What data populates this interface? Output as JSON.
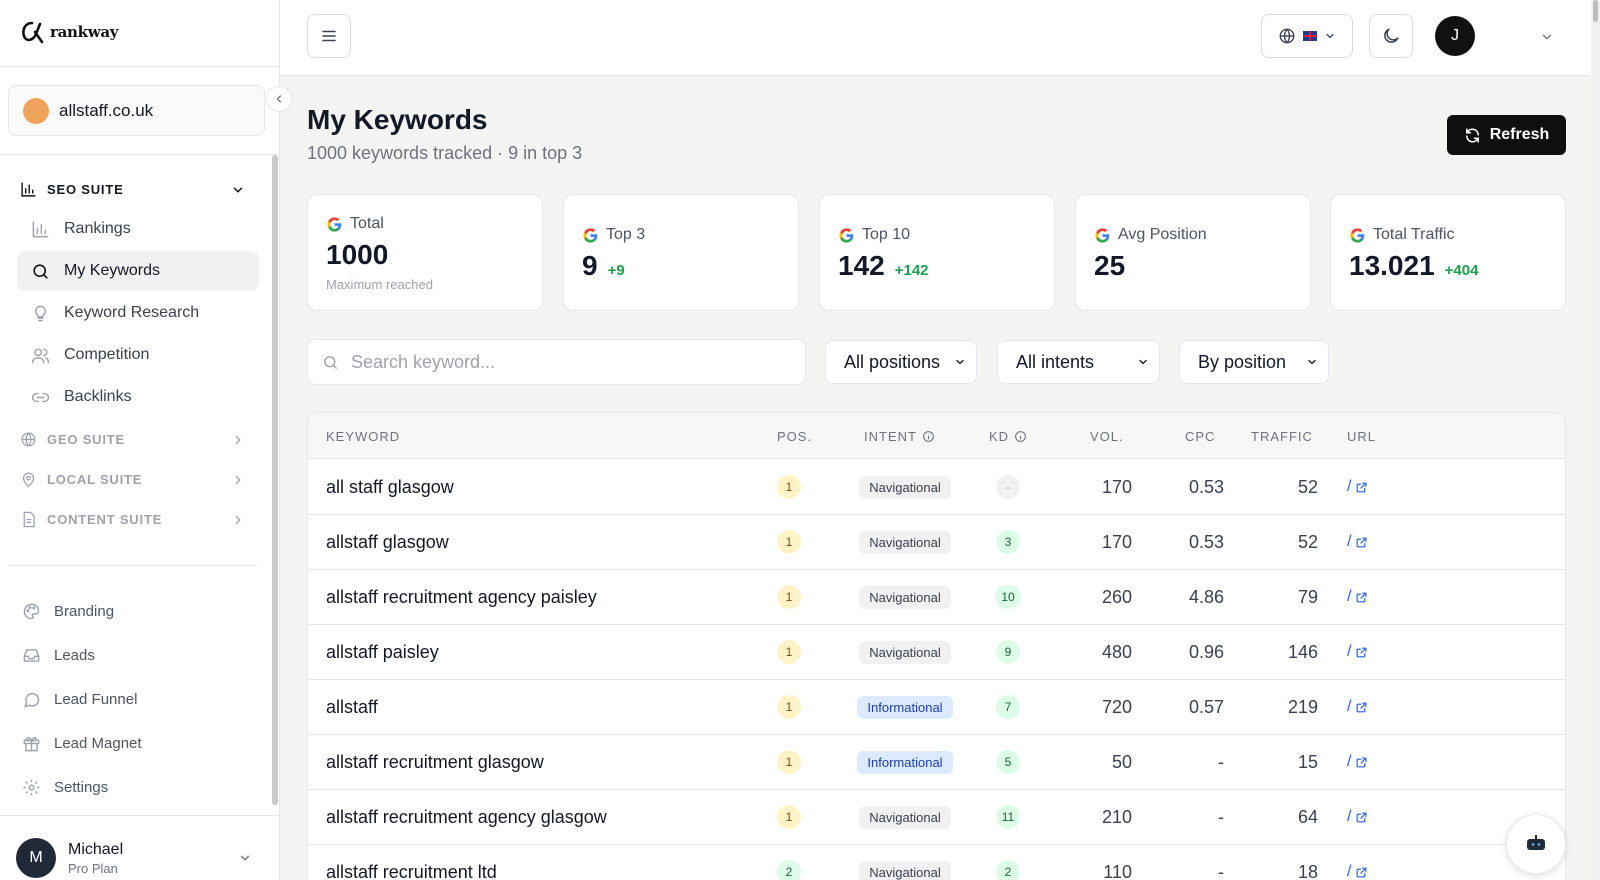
{
  "brand": {
    "name": "rankway"
  },
  "site": {
    "name": "allstaff.co.uk",
    "color": "#f0a35a"
  },
  "sidebar": {
    "seo_suite": {
      "label": "SEO SUITE",
      "items": [
        {
          "label": "Rankings",
          "icon": "bar-chart-icon"
        },
        {
          "label": "My Keywords",
          "icon": "search-icon",
          "active": true
        },
        {
          "label": "Keyword Research",
          "icon": "lightbulb-icon"
        },
        {
          "label": "Competition",
          "icon": "users-icon"
        },
        {
          "label": "Backlinks",
          "icon": "link-icon"
        }
      ]
    },
    "collapsed_sections": [
      {
        "label": "GEO SUITE",
        "icon": "globe-icon"
      },
      {
        "label": "LOCAL SUITE",
        "icon": "map-pin-icon"
      },
      {
        "label": "CONTENT SUITE",
        "icon": "document-icon"
      }
    ],
    "bottom_items": [
      {
        "label": "Branding",
        "icon": "palette-icon"
      },
      {
        "label": "Leads",
        "icon": "inbox-icon"
      },
      {
        "label": "Lead Funnel",
        "icon": "chat-bubble-icon"
      },
      {
        "label": "Lead Magnet",
        "icon": "gift-icon"
      },
      {
        "label": "Settings",
        "icon": "gear-icon"
      }
    ],
    "user": {
      "initial": "M",
      "name": "Michael",
      "plan": "Pro Plan"
    }
  },
  "topbar": {
    "avatar_initial": "J"
  },
  "header": {
    "title": "My Keywords",
    "subtitle": "1000 keywords tracked · 9 in top 3",
    "refresh_label": "Refresh"
  },
  "stats": [
    {
      "label": "Total",
      "value": "1000",
      "delta": "",
      "note": "Maximum reached"
    },
    {
      "label": "Top 3",
      "value": "9",
      "delta": "+9",
      "note": ""
    },
    {
      "label": "Top 10",
      "value": "142",
      "delta": "+142",
      "note": ""
    },
    {
      "label": "Avg Position",
      "value": "25",
      "delta": "",
      "note": ""
    },
    {
      "label": "Total Traffic",
      "value": "13.021",
      "delta": "+404",
      "note": ""
    }
  ],
  "filters": {
    "search_placeholder": "Search keyword...",
    "positions": "All positions",
    "intents": "All intents",
    "sort": "By position"
  },
  "table": {
    "columns": {
      "keyword": "KEYWORD",
      "pos": "POS.",
      "intent": "INTENT",
      "kd": "KD",
      "vol": "VOL.",
      "cpc": "CPC",
      "traffic": "TRAFFIC",
      "url": "URL"
    },
    "rows": [
      {
        "keyword": "all staff glasgow",
        "pos": "1",
        "intent": "Navigational",
        "kd": "-",
        "vol": "170",
        "cpc": "0.53",
        "traffic": "52",
        "url": "/"
      },
      {
        "keyword": "allstaff glasgow",
        "pos": "1",
        "intent": "Navigational",
        "kd": "3",
        "vol": "170",
        "cpc": "0.53",
        "traffic": "52",
        "url": "/"
      },
      {
        "keyword": "allstaff recruitment agency paisley",
        "pos": "1",
        "intent": "Navigational",
        "kd": "10",
        "vol": "260",
        "cpc": "4.86",
        "traffic": "79",
        "url": "/"
      },
      {
        "keyword": "allstaff paisley",
        "pos": "1",
        "intent": "Navigational",
        "kd": "9",
        "vol": "480",
        "cpc": "0.96",
        "traffic": "146",
        "url": "/"
      },
      {
        "keyword": "allstaff",
        "pos": "1",
        "intent": "Informational",
        "kd": "7",
        "vol": "720",
        "cpc": "0.57",
        "traffic": "219",
        "url": "/"
      },
      {
        "keyword": "allstaff recruitment glasgow",
        "pos": "1",
        "intent": "Informational",
        "kd": "5",
        "vol": "50",
        "cpc": "-",
        "traffic": "15",
        "url": "/"
      },
      {
        "keyword": "allstaff recruitment agency glasgow",
        "pos": "1",
        "intent": "Navigational",
        "kd": "11",
        "vol": "210",
        "cpc": "-",
        "traffic": "64",
        "url": "/"
      },
      {
        "keyword": "allstaff recruitment ltd",
        "pos": "2",
        "intent": "Navigational",
        "kd": "2",
        "vol": "110",
        "cpc": "-",
        "traffic": "18",
        "url": "/"
      }
    ]
  }
}
